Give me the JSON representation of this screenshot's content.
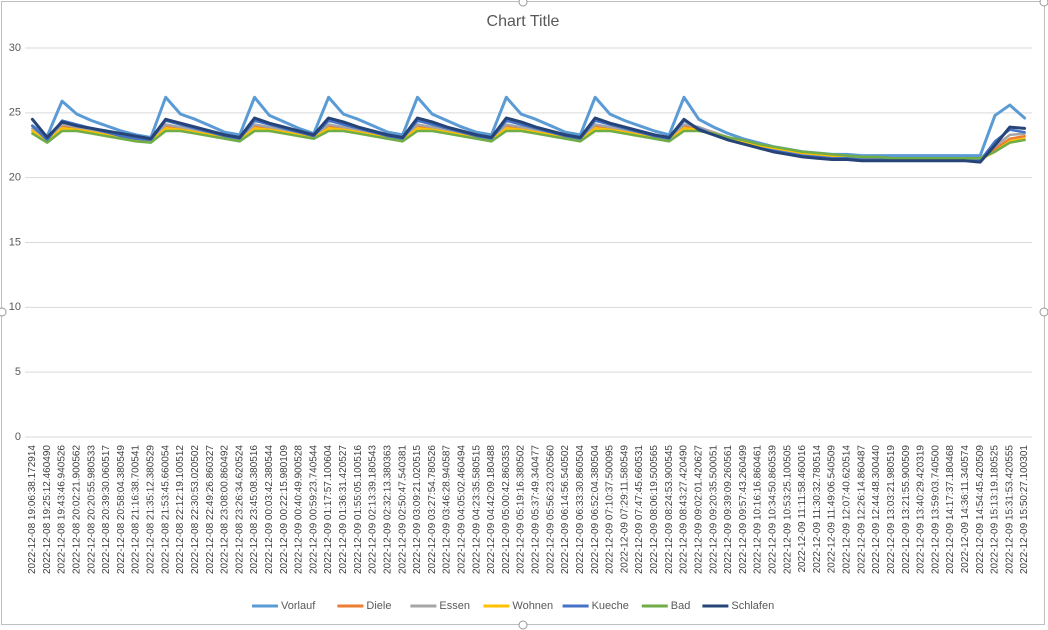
{
  "chart_data": {
    "type": "line",
    "title": "Chart Title",
    "categories": [
      "2022-12-08 19:06:38.172914",
      "2022-12-08 19:25:12.460490",
      "2022-12-08 19:43:46.940526",
      "2022-12-08 20:02:21.900562",
      "2022-12-08 20:20:55.980533",
      "2022-12-08 20:39:30.060517",
      "2022-12-08 20:58:04.380549",
      "2022-12-08 21:16:38.700541",
      "2022-12-08 21:35:12.380529",
      "2022-12-08 21:53:45.660054",
      "2022-12-08 22:12:19.100512",
      "2022-12-08 22:30:53.020502",
      "2022-12-08 22:49:26.860327",
      "2022-12-08 23:08:00.860492",
      "2022-12-08 23:26:34.620524",
      "2022-12-08 23:45:08.380516",
      "2022-12-09 00:03:42.380544",
      "2022-12-09 00:22:15.980109",
      "2022-12-09 00:40:49.900528",
      "2022-12-09 00:59:23.740544",
      "2022-12-09 01:17:57.100604",
      "2022-12-09 01:36:31.420527",
      "2022-12-09 01:55:05.100516",
      "2022-12-09 02:13:39.180543",
      "2022-12-09 02:32:13.380363",
      "2022-12-09 02:50:47.540381",
      "2022-12-09 03:09:21.020515",
      "2022-12-09 03:27:54.780526",
      "2022-12-09 03:46:28.940587",
      "2022-12-09 04:05:02.460494",
      "2022-12-09 04:23:35.580515",
      "2022-12-09 04:42:09.180488",
      "2022-12-09 05:00:42.860353",
      "2022-12-09 05:19:16.380502",
      "2022-12-09 05:37:49.340477",
      "2022-12-09 05:56:23.020560",
      "2022-12-09 06:14:56.540502",
      "2022-12-09 06:33:30.860504",
      "2022-12-09 06:52:04.380504",
      "2022-12-09 07:10:37.500095",
      "2022-12-09 07:29:11.580549",
      "2022-12-09 07:47:45.660531",
      "2022-12-09 08:06:19.500565",
      "2022-12-09 08:24:53.900545",
      "2022-12-09 08:43:27.420490",
      "2022-12-09 09:02:01.420627",
      "2022-12-09 09:20:35.500051",
      "2022-12-09 09:39:09.260561",
      "2022-12-09 09:57:43.260499",
      "2022-12-09 10:16:16.860461",
      "2022-12-09 10:34:50.860539",
      "2022-12-09 10:53:25.100505",
      "2022-12-09 11:11:58.460016",
      "2022-12-09 11:30:32.780514",
      "2022-12-09 11:49:06.540509",
      "2022-12-09 12:07:40.620514",
      "2022-12-09 12:26:14.860487",
      "2022-12-09 12:44:48.300440",
      "2022-12-09 13:03:21.980519",
      "2022-12-09 13:21:55.900509",
      "2022-12-09 13:40:29.420319",
      "2022-12-09 13:59:03.740500",
      "2022-12-09 14:17:37.180468",
      "2022-12-09 14:36:11.340574",
      "2022-12-09 14:54:45.420509",
      "2022-12-09 15:13:19.180525",
      "2022-12-09 15:31:53.420555",
      "2022-12-09 15:50:27.100301"
    ],
    "series": [
      {
        "name": "Vorlauf",
        "color": "#5b9bd5",
        "values": [
          24.0,
          23.2,
          25.9,
          24.9,
          24.4,
          24.0,
          23.6,
          23.3,
          23.1,
          26.2,
          24.9,
          24.5,
          24.0,
          23.5,
          23.3,
          26.2,
          24.8,
          24.3,
          23.8,
          23.4,
          26.2,
          24.9,
          24.5,
          24.0,
          23.5,
          23.3,
          26.2,
          24.9,
          24.4,
          23.9,
          23.5,
          23.3,
          26.2,
          24.9,
          24.5,
          24.0,
          23.5,
          23.3,
          26.2,
          24.9,
          24.4,
          24.0,
          23.6,
          23.3,
          26.2,
          24.5,
          23.9,
          23.4,
          23.0,
          22.7,
          22.4,
          22.2,
          22.0,
          21.9,
          21.8,
          21.8,
          21.7,
          21.7,
          21.7,
          21.7,
          21.7,
          21.7,
          21.7,
          21.7,
          21.7,
          24.8,
          25.6,
          24.6
        ]
      },
      {
        "name": "Diele",
        "color": "#ed7d31",
        "values": [
          23.6,
          22.8,
          24.0,
          23.8,
          23.6,
          23.4,
          23.1,
          22.9,
          22.8,
          24.0,
          23.8,
          23.6,
          23.4,
          23.1,
          22.9,
          24.0,
          23.8,
          23.6,
          23.4,
          23.1,
          24.0,
          23.8,
          23.6,
          23.4,
          23.1,
          22.9,
          24.0,
          23.8,
          23.6,
          23.4,
          23.1,
          22.9,
          24.0,
          23.8,
          23.6,
          23.4,
          23.1,
          22.9,
          24.0,
          23.8,
          23.6,
          23.4,
          23.1,
          22.9,
          24.0,
          23.8,
          23.5,
          23.1,
          22.8,
          22.5,
          22.3,
          22.1,
          21.9,
          21.8,
          21.7,
          21.6,
          21.6,
          21.5,
          21.5,
          21.5,
          21.5,
          21.5,
          21.5,
          21.5,
          21.4,
          22.2,
          23.0,
          23.2
        ]
      },
      {
        "name": "Essen",
        "color": "#a5a5a5",
        "values": [
          23.8,
          22.9,
          24.1,
          23.9,
          23.7,
          23.5,
          23.2,
          23.0,
          22.9,
          24.1,
          23.9,
          23.7,
          23.5,
          23.2,
          23.0,
          24.1,
          23.9,
          23.7,
          23.5,
          23.2,
          24.1,
          23.9,
          23.7,
          23.5,
          23.2,
          23.0,
          24.1,
          23.9,
          23.7,
          23.5,
          23.2,
          23.0,
          24.1,
          23.9,
          23.7,
          23.5,
          23.2,
          23.0,
          24.1,
          23.9,
          23.7,
          23.5,
          23.2,
          23.0,
          24.1,
          23.9,
          23.5,
          23.1,
          22.8,
          22.5,
          22.3,
          22.1,
          21.9,
          21.8,
          21.7,
          21.6,
          21.6,
          21.5,
          21.5,
          21.5,
          21.5,
          21.5,
          21.5,
          21.5,
          21.5,
          22.4,
          23.3,
          23.4
        ]
      },
      {
        "name": "Wohnen",
        "color": "#ffc000",
        "values": [
          23.6,
          22.8,
          23.8,
          23.7,
          23.5,
          23.3,
          23.1,
          22.9,
          22.8,
          23.8,
          23.7,
          23.5,
          23.3,
          23.1,
          22.9,
          23.8,
          23.7,
          23.5,
          23.3,
          23.1,
          23.8,
          23.7,
          23.5,
          23.3,
          23.1,
          22.9,
          23.8,
          23.7,
          23.5,
          23.3,
          23.1,
          22.9,
          23.8,
          23.7,
          23.5,
          23.3,
          23.1,
          22.9,
          23.8,
          23.7,
          23.5,
          23.3,
          23.1,
          22.9,
          23.8,
          23.7,
          23.4,
          23.1,
          22.8,
          22.5,
          22.3,
          22.1,
          21.9,
          21.8,
          21.7,
          21.6,
          21.6,
          21.5,
          21.5,
          21.5,
          21.5,
          21.5,
          21.5,
          21.5,
          21.4,
          22.0,
          22.8,
          23.0
        ]
      },
      {
        "name": "Kueche",
        "color": "#4472c4",
        "values": [
          24.0,
          22.9,
          24.4,
          24.1,
          23.8,
          23.5,
          23.2,
          23.0,
          22.9,
          24.4,
          24.1,
          23.8,
          23.5,
          23.2,
          23.0,
          24.4,
          24.1,
          23.8,
          23.5,
          23.2,
          24.4,
          24.1,
          23.8,
          23.5,
          23.2,
          23.0,
          24.4,
          24.1,
          23.8,
          23.5,
          23.2,
          23.0,
          24.4,
          24.1,
          23.8,
          23.5,
          23.2,
          23.0,
          24.4,
          24.1,
          23.8,
          23.5,
          23.2,
          23.0,
          24.4,
          23.8,
          23.3,
          22.9,
          22.6,
          22.3,
          22.1,
          21.9,
          21.7,
          21.6,
          21.5,
          21.5,
          21.4,
          21.4,
          21.4,
          21.4,
          21.4,
          21.4,
          21.4,
          21.4,
          21.3,
          22.8,
          23.7,
          23.5
        ]
      },
      {
        "name": "Bad",
        "color": "#70ad47",
        "values": [
          23.4,
          22.7,
          23.6,
          23.6,
          23.4,
          23.2,
          23.0,
          22.8,
          22.7,
          23.6,
          23.6,
          23.4,
          23.2,
          23.0,
          22.8,
          23.6,
          23.6,
          23.4,
          23.2,
          23.0,
          23.6,
          23.6,
          23.4,
          23.2,
          23.0,
          22.8,
          23.6,
          23.6,
          23.4,
          23.2,
          23.0,
          22.8,
          23.6,
          23.6,
          23.4,
          23.2,
          23.0,
          22.8,
          23.6,
          23.6,
          23.4,
          23.2,
          23.0,
          22.8,
          23.6,
          23.6,
          23.4,
          23.1,
          22.9,
          22.6,
          22.4,
          22.2,
          22.0,
          21.9,
          21.8,
          21.7,
          21.6,
          21.6,
          21.5,
          21.5,
          21.5,
          21.5,
          21.5,
          21.5,
          21.5,
          22.0,
          22.7,
          22.9
        ]
      },
      {
        "name": "Schlafen",
        "color": "#264478",
        "values": [
          24.5,
          23.1,
          24.3,
          24.0,
          23.8,
          23.6,
          23.4,
          23.2,
          23.0,
          24.5,
          24.2,
          23.9,
          23.6,
          23.3,
          23.1,
          24.6,
          24.2,
          23.9,
          23.6,
          23.3,
          24.6,
          24.3,
          23.9,
          23.6,
          23.3,
          23.1,
          24.6,
          24.3,
          23.9,
          23.6,
          23.3,
          23.1,
          24.6,
          24.3,
          23.9,
          23.6,
          23.3,
          23.1,
          24.6,
          24.2,
          23.9,
          23.6,
          23.3,
          23.1,
          24.5,
          23.7,
          23.3,
          22.9,
          22.6,
          22.3,
          22.0,
          21.8,
          21.6,
          21.5,
          21.4,
          21.4,
          21.3,
          21.3,
          21.3,
          21.3,
          21.3,
          21.3,
          21.3,
          21.3,
          21.2,
          22.5,
          23.9,
          23.8
        ]
      }
    ],
    "ylim": [
      0,
      30
    ],
    "yticks": [
      0,
      5,
      10,
      15,
      20,
      25,
      30
    ],
    "grid": true,
    "legend": "bottom"
  }
}
